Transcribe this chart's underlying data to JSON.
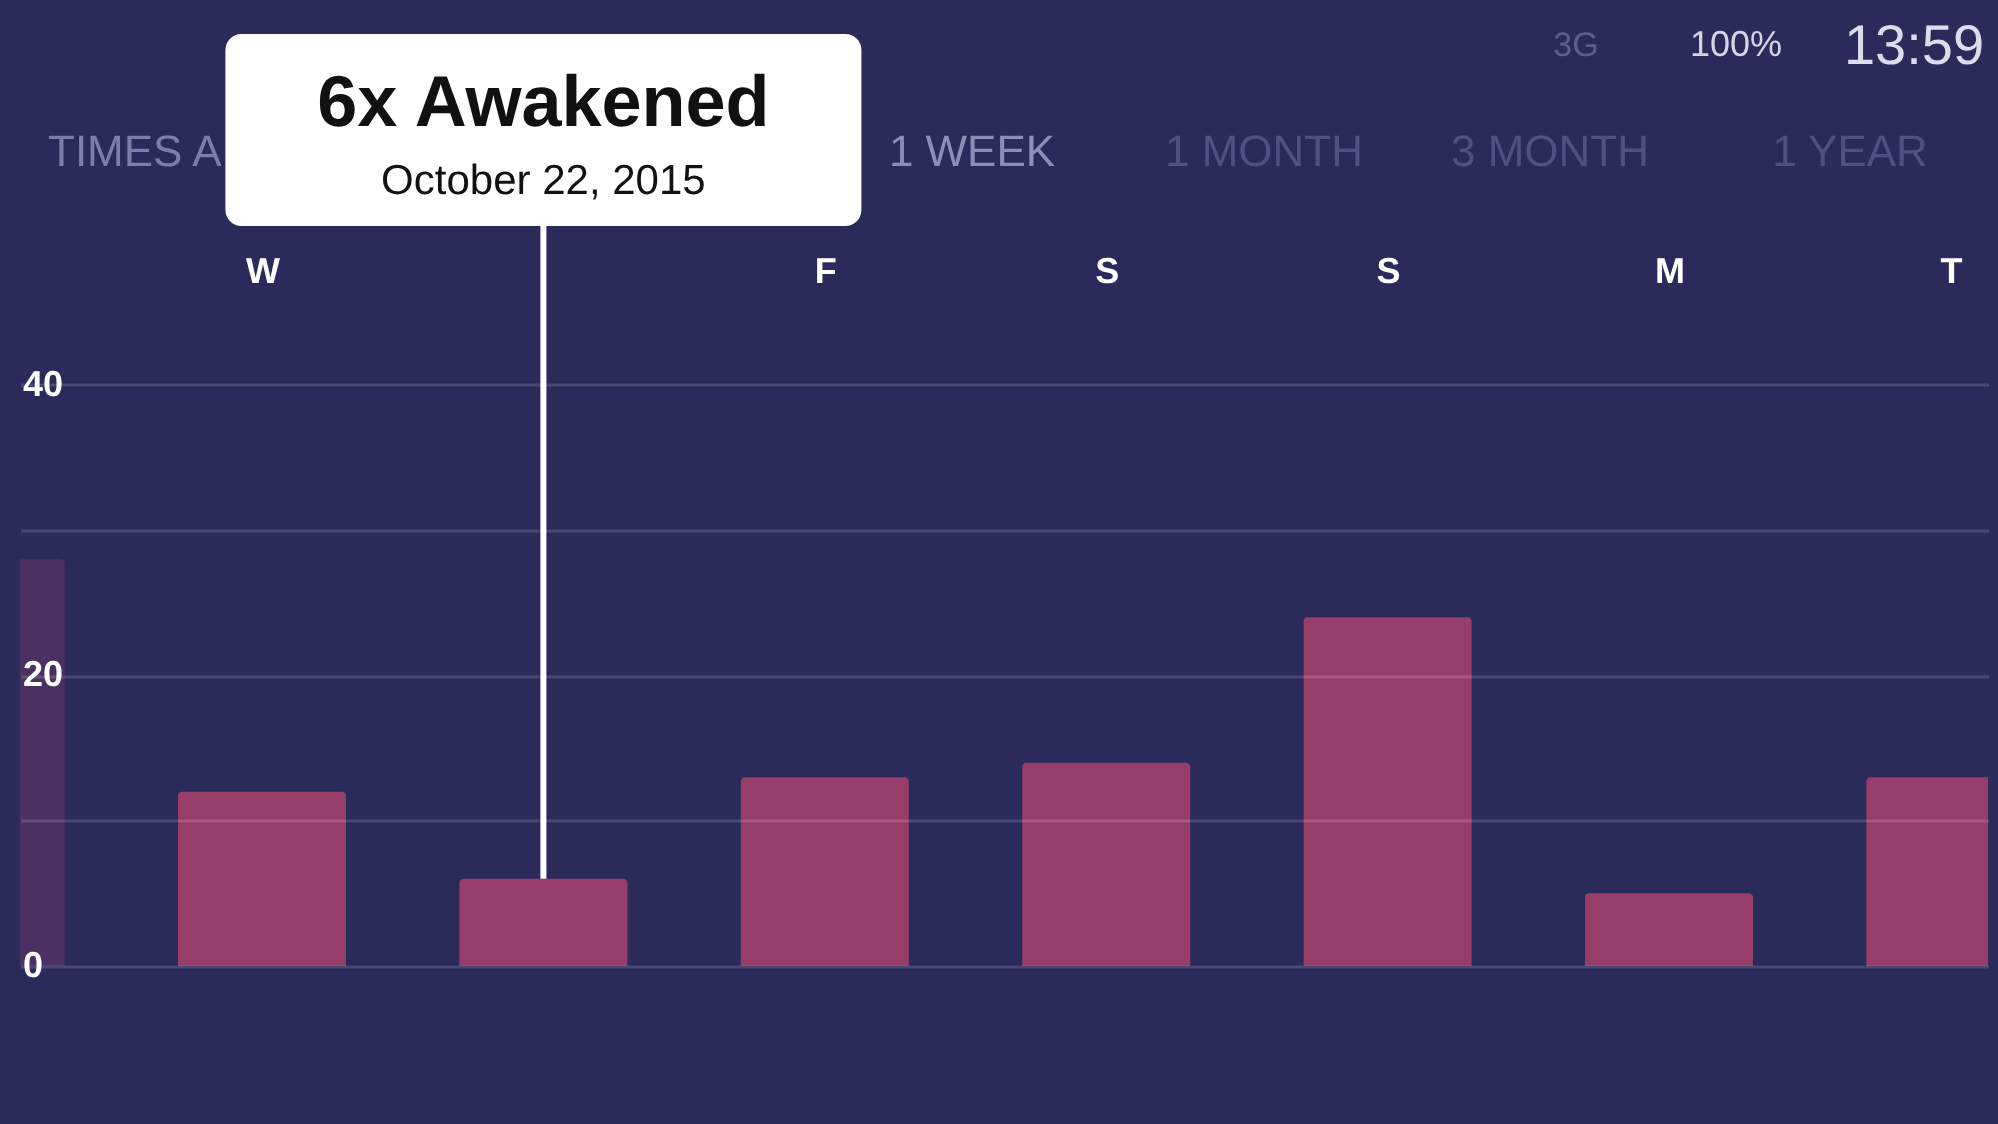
{
  "chart_data": {
    "type": "bar",
    "categories": [
      null,
      "W",
      null,
      "F",
      "S",
      "S",
      "M",
      "T"
    ],
    "values": [
      28,
      12,
      6,
      13,
      14,
      24,
      5,
      13
    ],
    "colors": [
      "#4b3163",
      "#963d6a",
      "#963d6a",
      "#963d6a",
      "#963d6a",
      "#963d6a",
      "#963d6a",
      "#963d6a"
    ],
    "ylim": [
      0,
      66.5
    ],
    "yticks": [
      0,
      {
        "value": 10,
        "label": null
      },
      20,
      {
        "value": 30,
        "label": null
      },
      40
    ],
    "grid": "y",
    "annotations": [
      {
        "text": "6x Awakened",
        "y": 6
      },
      "October 22, 2015",
      "TIMES A",
      "1 WEEK",
      "1 MONTH",
      "3 MONTH",
      "1 YEAR",
      "3G",
      "100%",
      "13:59"
    ]
  }
}
